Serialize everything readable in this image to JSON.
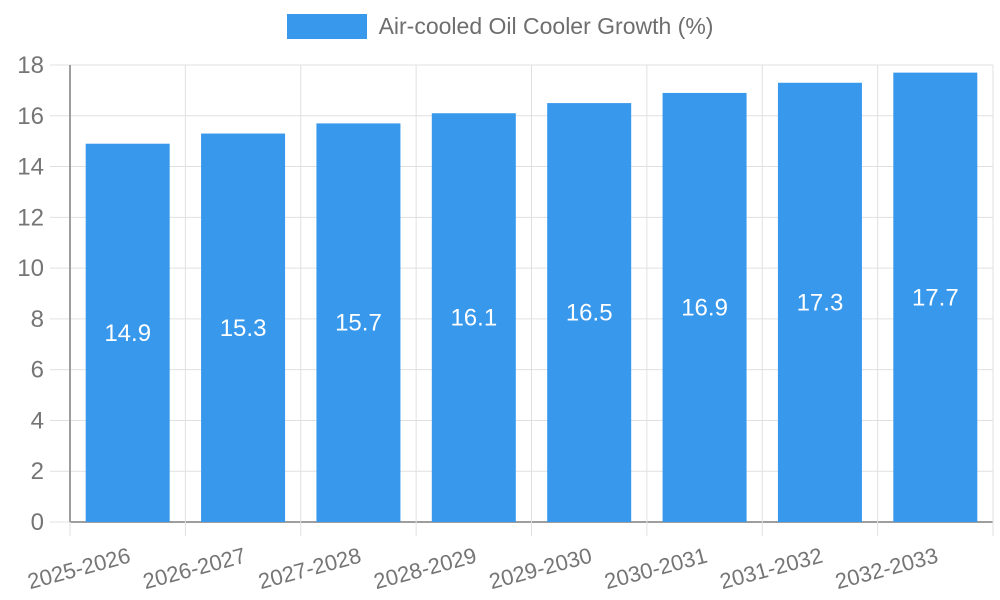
{
  "chart_data": {
    "type": "bar",
    "title": "Air-cooled Oil Cooler Growth (%)",
    "categories": [
      "2025-2026",
      "2026-2027",
      "2027-2028",
      "2028-2029",
      "2029-2030",
      "2030-2031",
      "2031-2032",
      "2032-2033"
    ],
    "values": [
      14.9,
      15.3,
      15.7,
      16.1,
      16.5,
      16.9,
      17.3,
      17.7
    ],
    "value_labels": [
      "14.9",
      "15.3",
      "15.7",
      "16.1",
      "16.5",
      "16.9",
      "17.3",
      "17.7"
    ],
    "xlabel": "",
    "ylabel": "",
    "ylim": [
      0,
      18
    ],
    "ytick_step": 2,
    "yticks": [
      0,
      2,
      4,
      6,
      8,
      10,
      12,
      14,
      16,
      18
    ],
    "grid": true,
    "legend_position": "top-center",
    "bar_color": "#3898EC",
    "value_label_color": "#FFFFFF",
    "axis_text_color": "#757575",
    "grid_color": "#E0E0E0",
    "axis_line_color": "#9E9E9E",
    "background_color": "#FFFFFF"
  }
}
